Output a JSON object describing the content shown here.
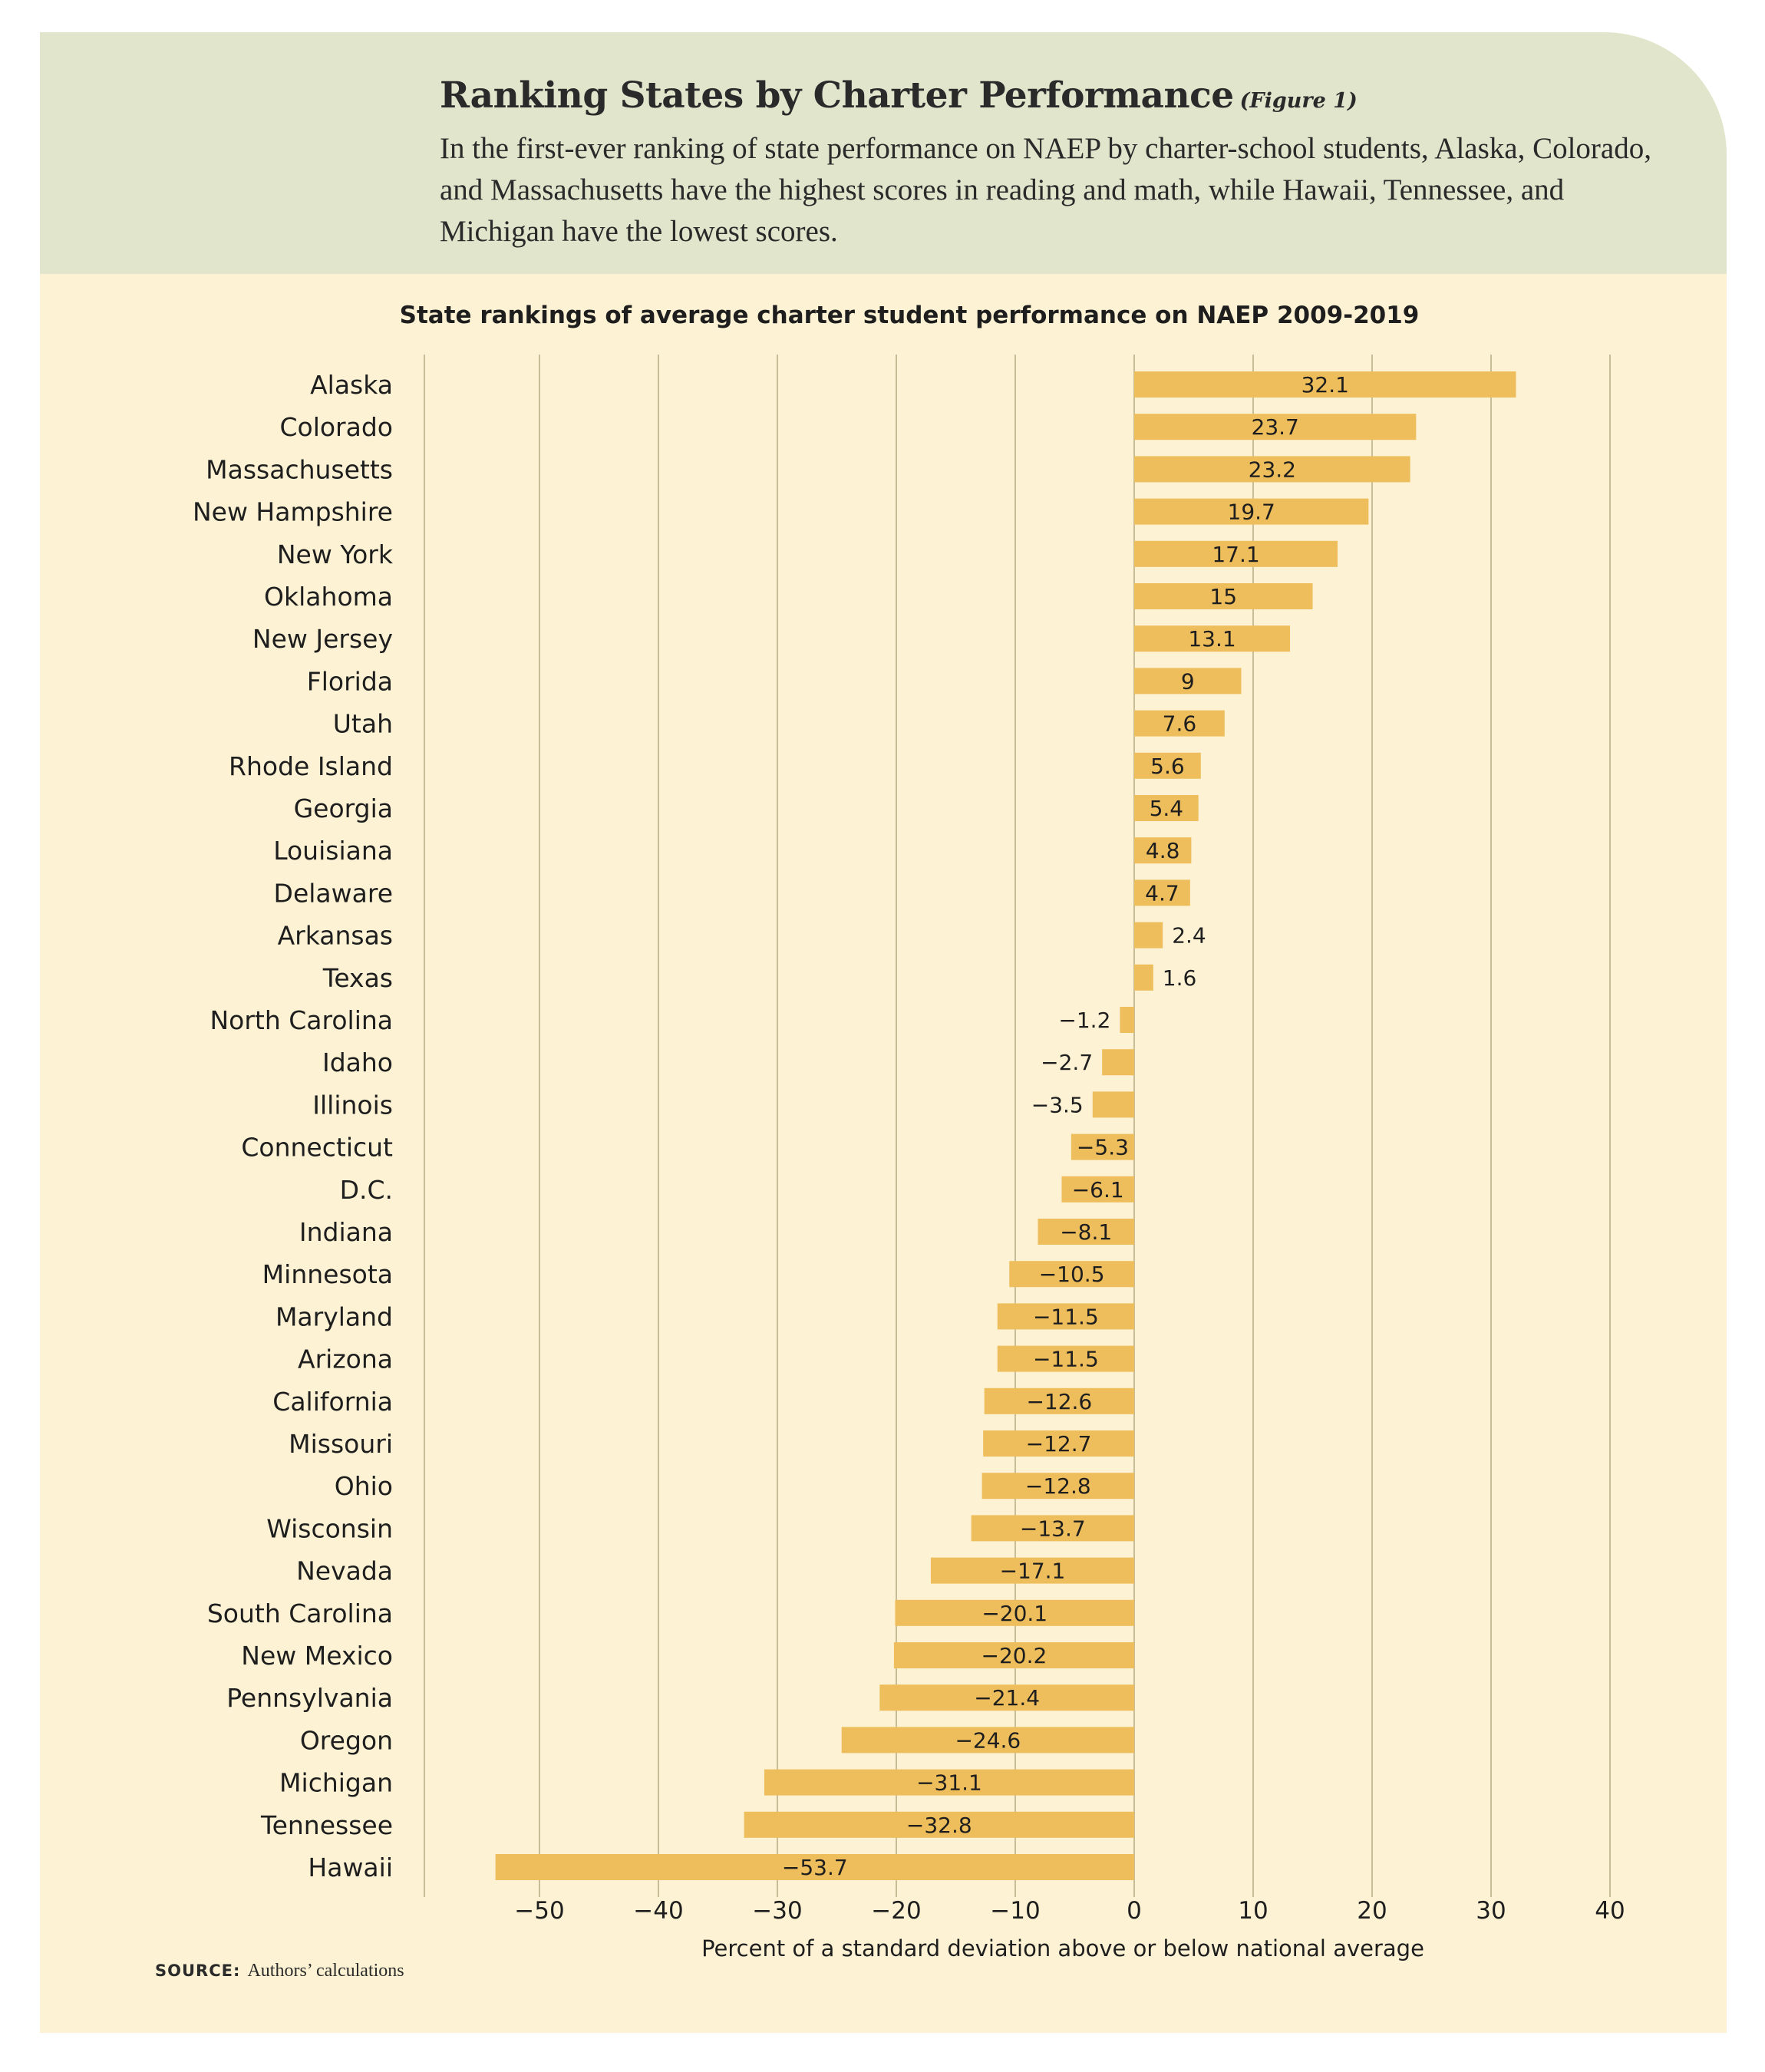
{
  "header": {
    "title": "Ranking States by Charter Performance",
    "figure_label": "(Figure 1)",
    "intro": "In the first-ever ranking of state performance on NAEP by charter-school students, Alaska, Colorado, and Massachusetts have the highest scores in reading and math, while Hawaii, Tennessee, and Michigan have the lowest scores."
  },
  "source": {
    "label": "SOURCE:",
    "text": "Authors’ calculations"
  },
  "colors": {
    "header_bg": "#e0e5cc",
    "chart_bg": "#fdf3d4",
    "bar": "#eebe5c",
    "grid": "#c9bd97"
  },
  "chart_data": {
    "type": "bar",
    "orientation": "horizontal",
    "title": "State rankings of average charter student performance on NAEP 2009-2019",
    "xlabel": "Percent of a standard deviation above or below national average",
    "ylabel": "",
    "xlim": [
      -60,
      40
    ],
    "xticks": [
      -50,
      -40,
      -30,
      -20,
      -10,
      0,
      10,
      20,
      30,
      40
    ],
    "xtick_labels": [
      "−50",
      "−40",
      "−30",
      "−20",
      "−10",
      "0",
      "10",
      "20",
      "30",
      "40"
    ],
    "grid": true,
    "categories": [
      "Alaska",
      "Colorado",
      "Massachusetts",
      "New Hampshire",
      "New York",
      "Oklahoma",
      "New Jersey",
      "Florida",
      "Utah",
      "Rhode Island",
      "Georgia",
      "Louisiana",
      "Delaware",
      "Arkansas",
      "Texas",
      "North Carolina",
      "Idaho",
      "Illinois",
      "Connecticut",
      "D.C.",
      "Indiana",
      "Minnesota",
      "Maryland",
      "Arizona",
      "California",
      "Missouri",
      "Ohio",
      "Wisconsin",
      "Nevada",
      "South Carolina",
      "New Mexico",
      "Pennsylvania",
      "Oregon",
      "Michigan",
      "Tennessee",
      "Hawaii"
    ],
    "values": [
      32.1,
      23.7,
      23.2,
      19.7,
      17.1,
      15,
      13.1,
      9,
      7.6,
      5.6,
      5.4,
      4.8,
      4.7,
      2.4,
      1.6,
      -1.2,
      -2.7,
      -3.5,
      -5.3,
      -6.1,
      -8.1,
      -10.5,
      -11.5,
      -11.5,
      -12.6,
      -12.7,
      -12.8,
      -13.7,
      -17.1,
      -20.1,
      -20.2,
      -21.4,
      -24.6,
      -31.1,
      -32.8,
      -53.7
    ],
    "value_labels": [
      "32.1",
      "23.7",
      "23.2",
      "19.7",
      "17.1",
      "15",
      "13.1",
      "9",
      "7.6",
      "5.6",
      "5.4",
      "4.8",
      "4.7",
      "2.4",
      "1.6",
      "−1.2",
      "−2.7",
      "−3.5",
      "−5.3",
      "−6.1",
      "−8.1",
      "−10.5",
      "−11.5",
      "−11.5",
      "−12.6",
      "−12.7",
      "−12.8",
      "−13.7",
      "−17.1",
      "−20.1",
      "−20.2",
      "−21.4",
      "−24.6",
      "−31.1",
      "−32.8",
      "−53.7"
    ]
  }
}
